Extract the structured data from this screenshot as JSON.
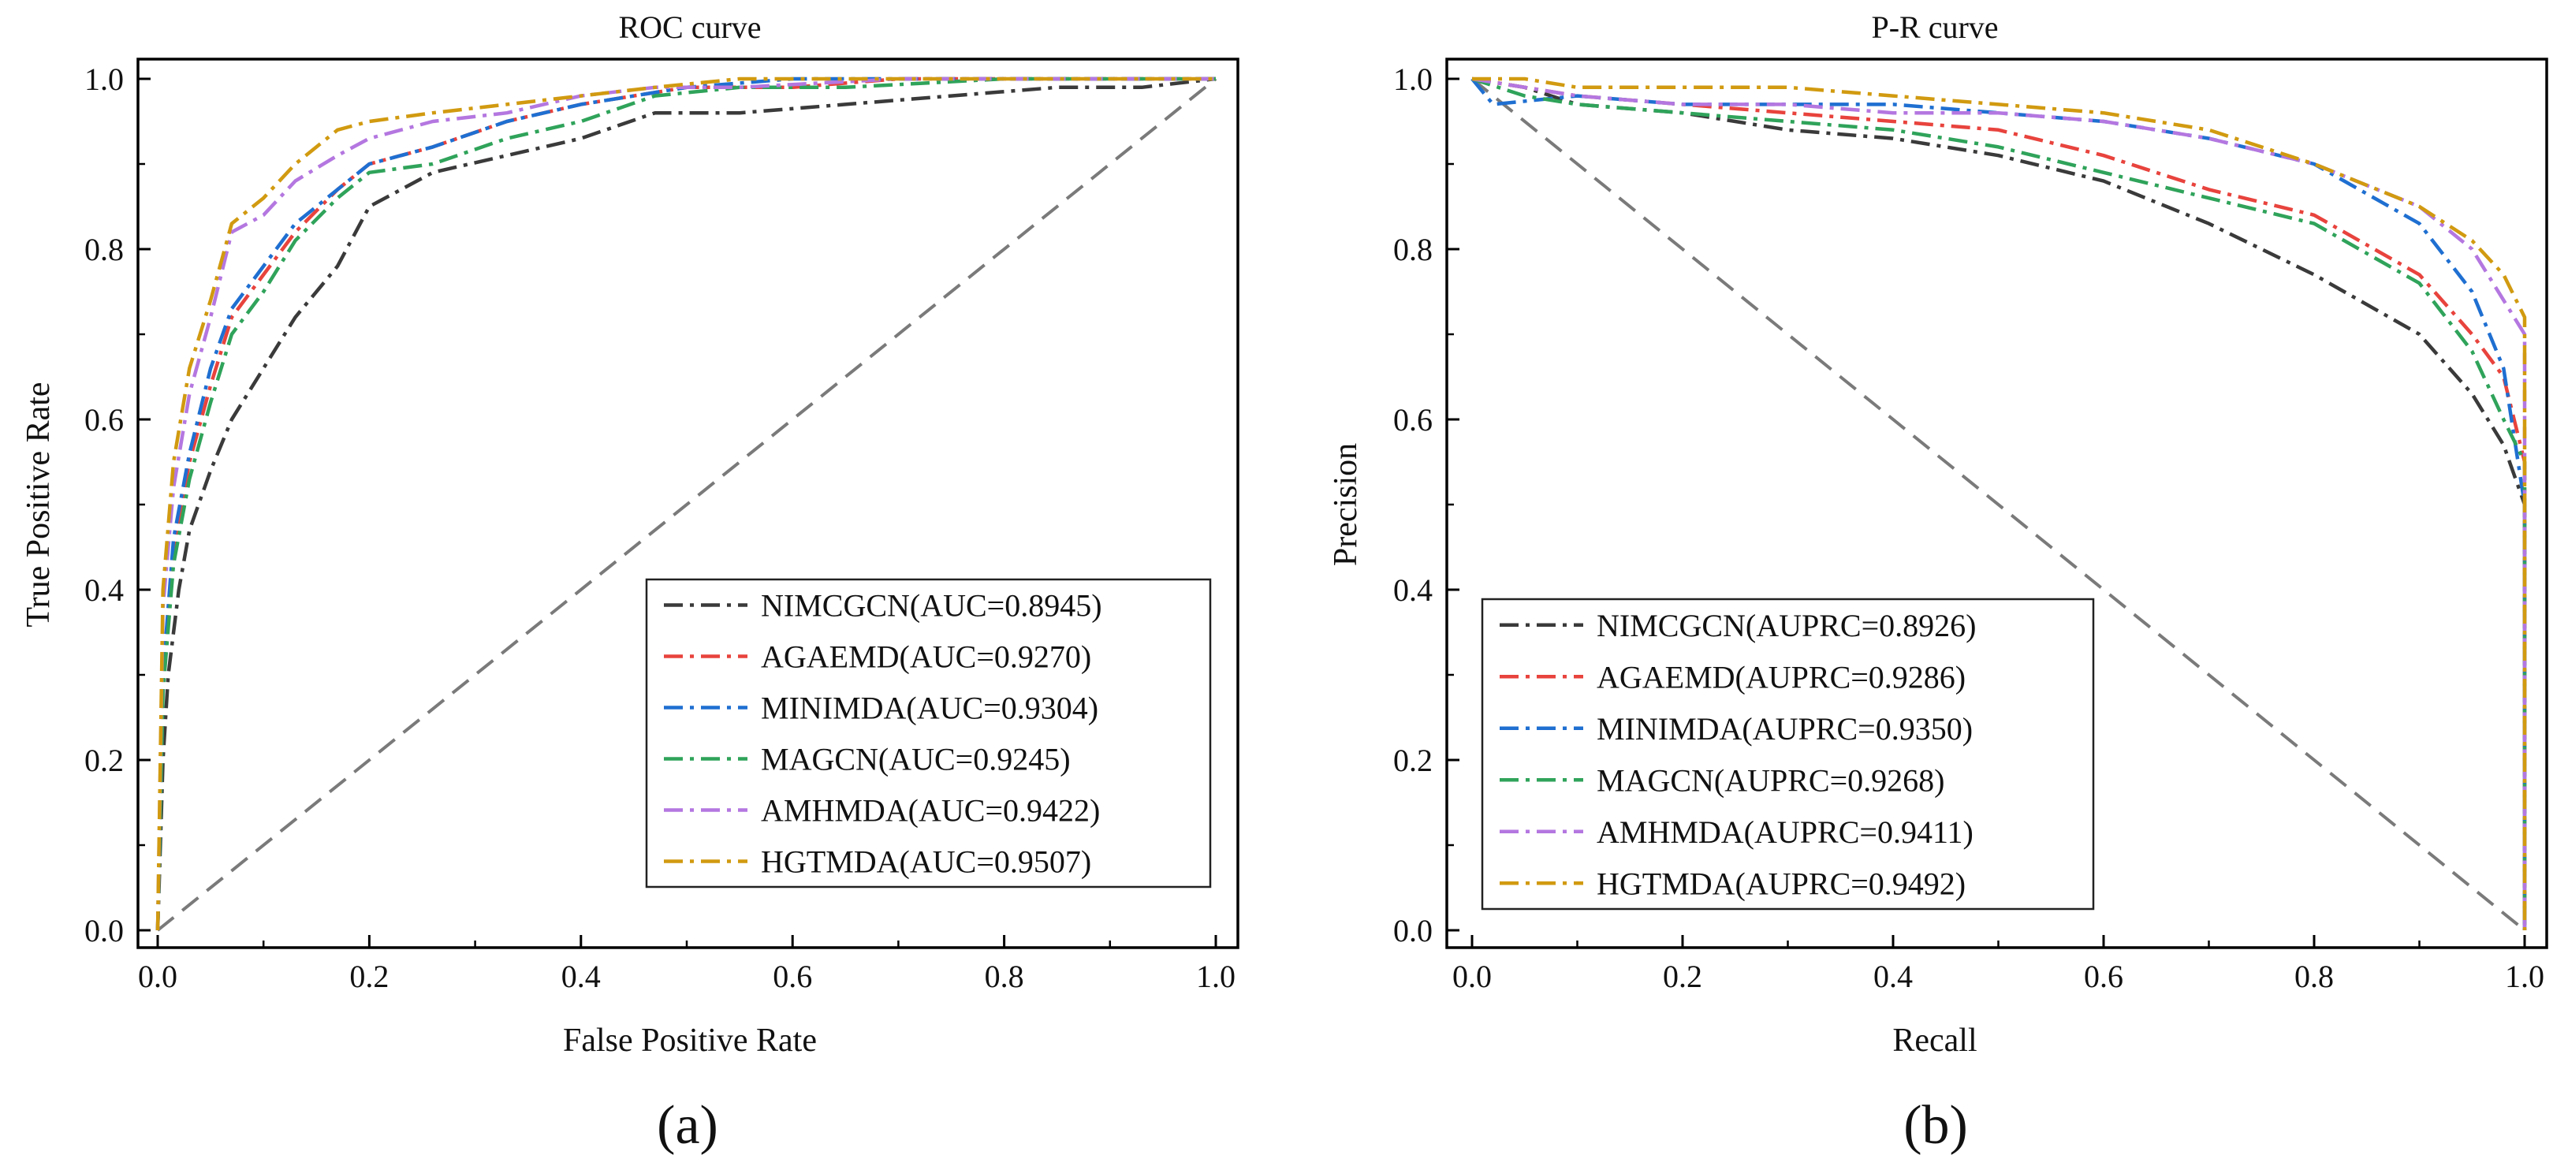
{
  "figure": {
    "panel_labels": [
      "(a)",
      "(b)"
    ]
  },
  "colors": {
    "NIMCGCN": "#3a3a3a",
    "AGAEMD": "#e8433d",
    "MINIMDA": "#1f6fd1",
    "MAGCN": "#2fa35a",
    "AMHMDA": "#b477e0",
    "HGTMDA": "#d19a10",
    "reference": "#7a7a7a"
  },
  "chart_data": [
    {
      "type": "line",
      "title": "ROC curve",
      "xlabel": "False Positive Rate",
      "ylabel": "True Positive Rate",
      "xlim": [
        0,
        1
      ],
      "ylim": [
        0,
        1
      ],
      "xticks": [
        "0.0",
        "0.2",
        "0.4",
        "0.6",
        "0.8",
        "1.0"
      ],
      "yticks": [
        "0.0",
        "0.2",
        "0.4",
        "0.6",
        "0.8",
        "1.0"
      ],
      "legend_position": "bottom-right",
      "reference_line": [
        [
          0,
          0
        ],
        [
          1,
          1
        ]
      ],
      "series": [
        {
          "name": "NIMCGCN",
          "legend": "NIMCGCN(AUC=0.8945)",
          "points": [
            [
              0,
              0
            ],
            [
              0.005,
              0.2
            ],
            [
              0.01,
              0.3
            ],
            [
              0.02,
              0.4
            ],
            [
              0.03,
              0.47
            ],
            [
              0.05,
              0.54
            ],
            [
              0.07,
              0.6
            ],
            [
              0.1,
              0.66
            ],
            [
              0.13,
              0.72
            ],
            [
              0.17,
              0.78
            ],
            [
              0.2,
              0.85
            ],
            [
              0.26,
              0.89
            ],
            [
              0.33,
              0.91
            ],
            [
              0.4,
              0.93
            ],
            [
              0.47,
              0.96
            ],
            [
              0.55,
              0.96
            ],
            [
              0.65,
              0.97
            ],
            [
              0.75,
              0.98
            ],
            [
              0.85,
              0.99
            ],
            [
              0.93,
              0.99
            ],
            [
              1,
              1
            ]
          ]
        },
        {
          "name": "AGAEMD",
          "legend": "AGAEMD(AUC=0.9270)",
          "points": [
            [
              0,
              0
            ],
            [
              0.005,
              0.3
            ],
            [
              0.015,
              0.45
            ],
            [
              0.03,
              0.55
            ],
            [
              0.05,
              0.64
            ],
            [
              0.07,
              0.72
            ],
            [
              0.1,
              0.77
            ],
            [
              0.13,
              0.82
            ],
            [
              0.17,
              0.87
            ],
            [
              0.2,
              0.9
            ],
            [
              0.26,
              0.92
            ],
            [
              0.33,
              0.95
            ],
            [
              0.4,
              0.97
            ],
            [
              0.5,
              0.99
            ],
            [
              0.6,
              0.99
            ],
            [
              0.7,
              1.0
            ],
            [
              0.85,
              1.0
            ],
            [
              1,
              1
            ]
          ]
        },
        {
          "name": "MINIMDA",
          "legend": "MINIMDA(AUC=0.9304)",
          "points": [
            [
              0,
              0
            ],
            [
              0.005,
              0.3
            ],
            [
              0.015,
              0.46
            ],
            [
              0.03,
              0.56
            ],
            [
              0.05,
              0.66
            ],
            [
              0.07,
              0.73
            ],
            [
              0.1,
              0.78
            ],
            [
              0.13,
              0.83
            ],
            [
              0.17,
              0.87
            ],
            [
              0.2,
              0.9
            ],
            [
              0.26,
              0.92
            ],
            [
              0.33,
              0.95
            ],
            [
              0.4,
              0.97
            ],
            [
              0.5,
              0.99
            ],
            [
              0.6,
              1.0
            ],
            [
              0.75,
              1.0
            ],
            [
              1,
              1
            ]
          ]
        },
        {
          "name": "MAGCN",
          "legend": "MAGCN(AUC=0.9245)",
          "points": [
            [
              0,
              0
            ],
            [
              0.005,
              0.28
            ],
            [
              0.015,
              0.43
            ],
            [
              0.03,
              0.53
            ],
            [
              0.05,
              0.62
            ],
            [
              0.07,
              0.7
            ],
            [
              0.1,
              0.75
            ],
            [
              0.13,
              0.81
            ],
            [
              0.17,
              0.86
            ],
            [
              0.2,
              0.89
            ],
            [
              0.26,
              0.9
            ],
            [
              0.33,
              0.93
            ],
            [
              0.4,
              0.95
            ],
            [
              0.47,
              0.98
            ],
            [
              0.55,
              0.99
            ],
            [
              0.65,
              0.99
            ],
            [
              0.8,
              1.0
            ],
            [
              1,
              1
            ]
          ]
        },
        {
          "name": "AMHMDA",
          "legend": "AMHMDA(AUC=0.9422)",
          "points": [
            [
              0,
              0
            ],
            [
              0.005,
              0.38
            ],
            [
              0.015,
              0.52
            ],
            [
              0.03,
              0.63
            ],
            [
              0.05,
              0.72
            ],
            [
              0.07,
              0.82
            ],
            [
              0.1,
              0.84
            ],
            [
              0.13,
              0.88
            ],
            [
              0.17,
              0.91
            ],
            [
              0.2,
              0.93
            ],
            [
              0.26,
              0.95
            ],
            [
              0.33,
              0.96
            ],
            [
              0.4,
              0.98
            ],
            [
              0.47,
              0.99
            ],
            [
              0.55,
              0.99
            ],
            [
              0.7,
              1.0
            ],
            [
              1,
              1
            ]
          ]
        },
        {
          "name": "HGTMDA",
          "legend": "HGTMDA(AUC=0.9507)",
          "points": [
            [
              0,
              0
            ],
            [
              0.005,
              0.4
            ],
            [
              0.015,
              0.55
            ],
            [
              0.03,
              0.66
            ],
            [
              0.05,
              0.74
            ],
            [
              0.07,
              0.83
            ],
            [
              0.1,
              0.86
            ],
            [
              0.13,
              0.9
            ],
            [
              0.17,
              0.94
            ],
            [
              0.2,
              0.95
            ],
            [
              0.26,
              0.96
            ],
            [
              0.33,
              0.97
            ],
            [
              0.4,
              0.98
            ],
            [
              0.47,
              0.99
            ],
            [
              0.55,
              1.0
            ],
            [
              0.7,
              1.0
            ],
            [
              1,
              1
            ]
          ]
        }
      ]
    },
    {
      "type": "line",
      "title": "P-R curve",
      "xlabel": "Recall",
      "ylabel": "Precision",
      "xlim": [
        0,
        1
      ],
      "ylim": [
        0,
        1
      ],
      "xticks": [
        "0.0",
        "0.2",
        "0.4",
        "0.6",
        "0.8",
        "1.0"
      ],
      "yticks": [
        "0.0",
        "0.2",
        "0.4",
        "0.6",
        "0.8",
        "1.0"
      ],
      "legend_position": "bottom-left",
      "reference_line": [
        [
          0,
          1
        ],
        [
          1,
          0
        ]
      ],
      "series": [
        {
          "name": "NIMCGCN",
          "legend": "NIMCGCN(AUPRC=0.8926)",
          "points": [
            [
              0,
              1
            ],
            [
              0.05,
              0.99
            ],
            [
              0.1,
              0.97
            ],
            [
              0.2,
              0.96
            ],
            [
              0.3,
              0.94
            ],
            [
              0.4,
              0.93
            ],
            [
              0.5,
              0.91
            ],
            [
              0.6,
              0.88
            ],
            [
              0.7,
              0.83
            ],
            [
              0.8,
              0.77
            ],
            [
              0.9,
              0.7
            ],
            [
              0.95,
              0.63
            ],
            [
              0.98,
              0.57
            ],
            [
              1,
              0.5
            ],
            [
              1,
              0
            ]
          ]
        },
        {
          "name": "AGAEMD",
          "legend": "AGAEMD(AUPRC=0.9286)",
          "points": [
            [
              0,
              1
            ],
            [
              0.05,
              0.99
            ],
            [
              0.1,
              0.98
            ],
            [
              0.2,
              0.97
            ],
            [
              0.3,
              0.96
            ],
            [
              0.4,
              0.95
            ],
            [
              0.5,
              0.94
            ],
            [
              0.6,
              0.91
            ],
            [
              0.7,
              0.87
            ],
            [
              0.8,
              0.84
            ],
            [
              0.9,
              0.77
            ],
            [
              0.95,
              0.7
            ],
            [
              0.98,
              0.65
            ],
            [
              1,
              0.55
            ],
            [
              1,
              0
            ]
          ]
        },
        {
          "name": "MINIMDA",
          "legend": "MINIMDA(AUPRC=0.9350)",
          "points": [
            [
              0,
              1
            ],
            [
              0.02,
              0.97
            ],
            [
              0.1,
              0.98
            ],
            [
              0.2,
              0.97
            ],
            [
              0.3,
              0.97
            ],
            [
              0.4,
              0.97
            ],
            [
              0.5,
              0.96
            ],
            [
              0.6,
              0.95
            ],
            [
              0.7,
              0.93
            ],
            [
              0.8,
              0.9
            ],
            [
              0.9,
              0.83
            ],
            [
              0.95,
              0.75
            ],
            [
              0.98,
              0.66
            ],
            [
              1,
              0.5
            ],
            [
              1,
              0
            ]
          ]
        },
        {
          "name": "MAGCN",
          "legend": "MAGCN(AUPRC=0.9268)",
          "points": [
            [
              0,
              1
            ],
            [
              0.05,
              0.98
            ],
            [
              0.1,
              0.97
            ],
            [
              0.2,
              0.96
            ],
            [
              0.3,
              0.95
            ],
            [
              0.4,
              0.94
            ],
            [
              0.5,
              0.92
            ],
            [
              0.6,
              0.89
            ],
            [
              0.7,
              0.86
            ],
            [
              0.8,
              0.83
            ],
            [
              0.9,
              0.76
            ],
            [
              0.95,
              0.68
            ],
            [
              0.98,
              0.6
            ],
            [
              1,
              0.55
            ],
            [
              1,
              0
            ]
          ]
        },
        {
          "name": "AMHMDA",
          "legend": "AMHMDA(AUPRC=0.9411)",
          "points": [
            [
              0,
              1
            ],
            [
              0.05,
              0.99
            ],
            [
              0.1,
              0.98
            ],
            [
              0.2,
              0.97
            ],
            [
              0.3,
              0.97
            ],
            [
              0.4,
              0.96
            ],
            [
              0.5,
              0.96
            ],
            [
              0.6,
              0.95
            ],
            [
              0.7,
              0.93
            ],
            [
              0.8,
              0.9
            ],
            [
              0.9,
              0.85
            ],
            [
              0.95,
              0.8
            ],
            [
              0.98,
              0.74
            ],
            [
              1,
              0.7
            ],
            [
              1,
              0
            ]
          ]
        },
        {
          "name": "HGTMDA",
          "legend": "HGTMDA(AUPRC=0.9492)",
          "points": [
            [
              0,
              1
            ],
            [
              0.05,
              1.0
            ],
            [
              0.1,
              0.99
            ],
            [
              0.2,
              0.99
            ],
            [
              0.3,
              0.99
            ],
            [
              0.4,
              0.98
            ],
            [
              0.5,
              0.97
            ],
            [
              0.6,
              0.96
            ],
            [
              0.7,
              0.94
            ],
            [
              0.8,
              0.9
            ],
            [
              0.9,
              0.85
            ],
            [
              0.95,
              0.81
            ],
            [
              0.98,
              0.77
            ],
            [
              1,
              0.72
            ],
            [
              1,
              0
            ]
          ]
        }
      ]
    }
  ]
}
